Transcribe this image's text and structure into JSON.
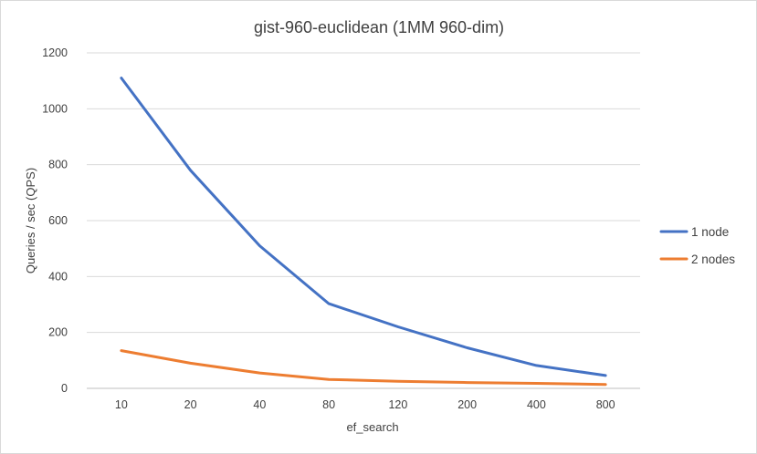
{
  "chart_data": {
    "type": "line",
    "title": "gist-960-euclidean (1MM 960-dim)",
    "xlabel": "ef_search",
    "ylabel": "Queries / sec (QPS)",
    "categories": [
      "10",
      "20",
      "40",
      "80",
      "120",
      "200",
      "400",
      "800"
    ],
    "ylim": [
      0,
      1200
    ],
    "yticks": [
      0,
      200,
      400,
      600,
      800,
      1000,
      1200
    ],
    "grid": true,
    "legend_position": "right",
    "series": [
      {
        "name": "1 node",
        "color": "#4472C4",
        "values": [
          1110,
          780,
          510,
          303,
          220,
          145,
          82,
          46
        ]
      },
      {
        "name": "2 nodes",
        "color": "#ED7D31",
        "values": [
          135,
          90,
          55,
          32,
          25,
          21,
          18,
          14
        ]
      }
    ]
  }
}
